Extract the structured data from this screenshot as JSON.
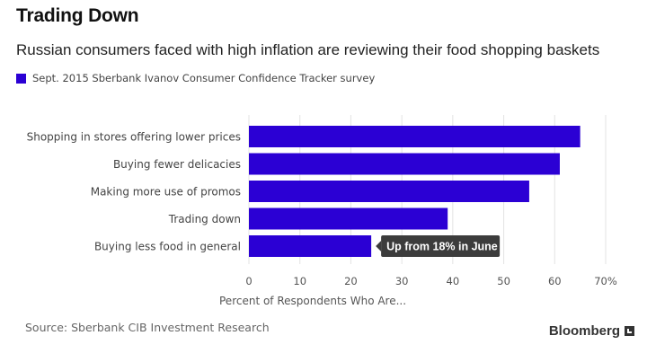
{
  "header": {
    "title": "Trading Down",
    "subtitle": "Russian consumers faced with high inflation are reviewing their food shopping baskets"
  },
  "legend": {
    "label": "Sept. 2015 Sberbank Ivanov Consumer Confidence Tracker survey",
    "color": "#2b00d4"
  },
  "chart_data": {
    "type": "bar",
    "orientation": "horizontal",
    "categories": [
      "Shopping in stores offering lower prices",
      "Buying fewer delicacies",
      "Making more use of promos",
      "Trading down",
      "Buying less food in general"
    ],
    "series": [
      {
        "name": "Sept. 2015 Sberbank Ivanov Consumer Confidence Tracker survey",
        "values": [
          65,
          61,
          55,
          39,
          24
        ]
      }
    ],
    "xlim": [
      0,
      70
    ],
    "xticks": [
      0,
      10,
      20,
      30,
      40,
      50,
      60,
      70
    ],
    "xtick_labels": [
      "0",
      "10",
      "20",
      "30",
      "40",
      "50",
      "60",
      "70%"
    ],
    "xlabel": "Percent of Respondents Who Are...",
    "grid": true,
    "annotation": {
      "category": "Buying less food in general",
      "text": "Up from 18% in June"
    }
  },
  "footer": {
    "source": "Source: Sberbank CIB Investment Research",
    "brand": "Bloomberg"
  }
}
